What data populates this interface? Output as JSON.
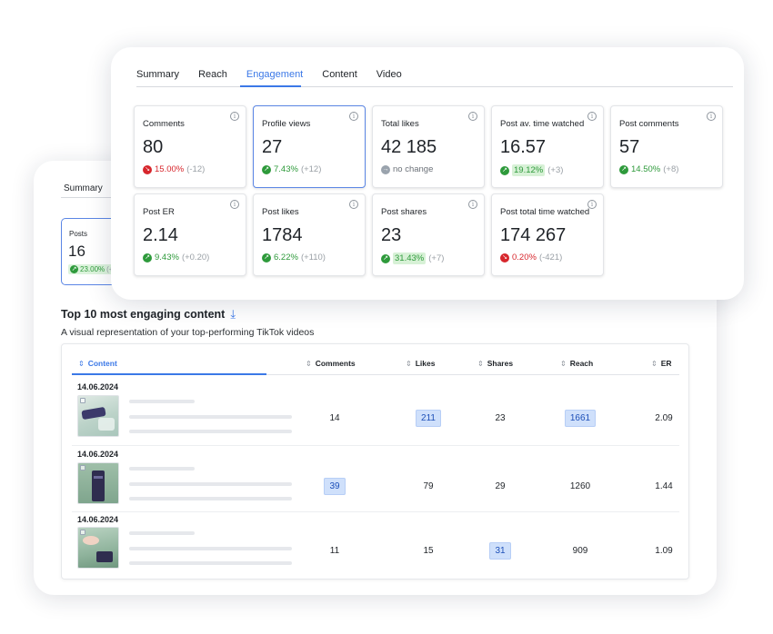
{
  "back_card": {
    "tab_summary": "Summary",
    "posts_card": {
      "label": "Posts",
      "value": "16",
      "change": "23.00%",
      "tail": "(+",
      "trend": "up"
    },
    "section_title": "Top 10 most engaging content",
    "section_subtitle": "A visual representation of your top-performing TikTok videos",
    "table": {
      "headers": [
        "Content",
        "Comments",
        "Likes",
        "Shares",
        "Reach",
        "ER"
      ],
      "rows": [
        {
          "date": "14.06.2024",
          "comments": "14",
          "likes": "211",
          "shares": "23",
          "reach": "1661",
          "er": "2.09",
          "highlight": [
            "likes",
            "reach"
          ]
        },
        {
          "date": "14.06.2024",
          "comments": "39",
          "likes": "79",
          "shares": "29",
          "reach": "1260",
          "er": "1.44",
          "highlight": [
            "comments"
          ]
        },
        {
          "date": "14.06.2024",
          "comments": "11",
          "likes": "15",
          "shares": "31",
          "reach": "909",
          "er": "1.09",
          "highlight": [
            "shares"
          ]
        }
      ]
    }
  },
  "front_card": {
    "tabs": [
      "Summary",
      "Reach",
      "Engagement",
      "Content",
      "Video"
    ],
    "active_tab": "Engagement",
    "metrics": [
      {
        "label": "Comments",
        "value": "80",
        "pct": "15.00%",
        "delta": "(-12)",
        "trend": "down"
      },
      {
        "label": "Profile views",
        "value": "27",
        "pct": "7.43%",
        "delta": "(+12)",
        "trend": "up"
      },
      {
        "label": "Total likes",
        "value": "42 185",
        "pct": "no change",
        "delta": "",
        "trend": "flat"
      },
      {
        "label": "Post av. time watched",
        "value": "16.57",
        "pct": "19.12%",
        "delta": "(+3)",
        "trend": "up"
      },
      {
        "label": "Post comments",
        "value": "57",
        "pct": "14.50%",
        "delta": "(+8)",
        "trend": "up"
      },
      {
        "label": "Post ER",
        "value": "2.14",
        "pct": "9.43%",
        "delta": "(+0.20)",
        "trend": "up"
      },
      {
        "label": "Post likes",
        "value": "1784",
        "pct": "6.22%",
        "delta": "(+110)",
        "trend": "up"
      },
      {
        "label": "Post shares",
        "value": "23",
        "pct": "31.43%",
        "delta": "(+7)",
        "trend": "up"
      },
      {
        "label": "Post total time watched",
        "value": "174 267",
        "pct": "0.20%",
        "delta": "(-421)",
        "trend": "down"
      }
    ]
  },
  "icons": {
    "info": "info-icon",
    "download": "download-icon",
    "sort": "sort-icon",
    "trend_up": "arrow-up-right-icon",
    "trend_down": "arrow-down-right-icon",
    "no_change": "arrow-right-icon"
  },
  "colors": {
    "accent": "#3b78e7",
    "up": "#2e9a3b",
    "down": "#d7262c",
    "neutral": "#9aa3ad",
    "highlight": "#cfe0fb"
  }
}
